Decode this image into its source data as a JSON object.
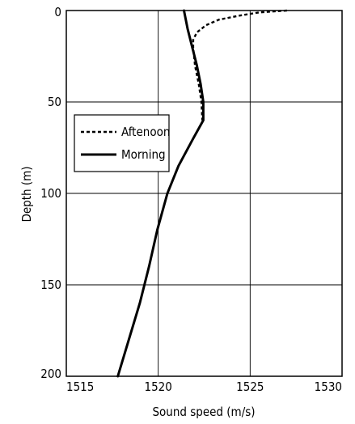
{
  "chart_data": {
    "type": "line",
    "xlabel": "Sound speed (m/s)",
    "ylabel": "Depth (m)",
    "xlim": [
      1515,
      1530
    ],
    "ylim": [
      0,
      200
    ],
    "y_inverted": true,
    "xticks": [
      1515,
      1520,
      1525,
      1530
    ],
    "yticks": [
      0,
      50,
      100,
      150,
      200
    ],
    "grid": true,
    "legend_position": "left",
    "series": [
      {
        "name": "Aftenoon",
        "style": "dashed",
        "color": "#000000",
        "points": [
          [
            1527.0,
            0
          ],
          [
            1525.5,
            1
          ],
          [
            1524.3,
            3
          ],
          [
            1523.3,
            5
          ],
          [
            1522.6,
            8
          ],
          [
            1522.1,
            12
          ],
          [
            1521.9,
            16
          ],
          [
            1521.9,
            20
          ],
          [
            1522.0,
            30
          ],
          [
            1522.2,
            40
          ],
          [
            1522.35,
            50
          ],
          [
            1522.4,
            60
          ]
        ]
      },
      {
        "name": "Morning",
        "style": "solid",
        "color": "#000000",
        "points": [
          [
            1521.4,
            0
          ],
          [
            1521.6,
            10
          ],
          [
            1521.85,
            20
          ],
          [
            1522.1,
            30
          ],
          [
            1522.3,
            40
          ],
          [
            1522.45,
            50
          ],
          [
            1522.45,
            60
          ],
          [
            1521.9,
            70
          ],
          [
            1521.1,
            85
          ],
          [
            1520.5,
            100
          ],
          [
            1519.95,
            120
          ],
          [
            1519.5,
            140
          ],
          [
            1519.0,
            160
          ],
          [
            1518.4,
            180
          ],
          [
            1517.8,
            200
          ]
        ]
      }
    ]
  }
}
